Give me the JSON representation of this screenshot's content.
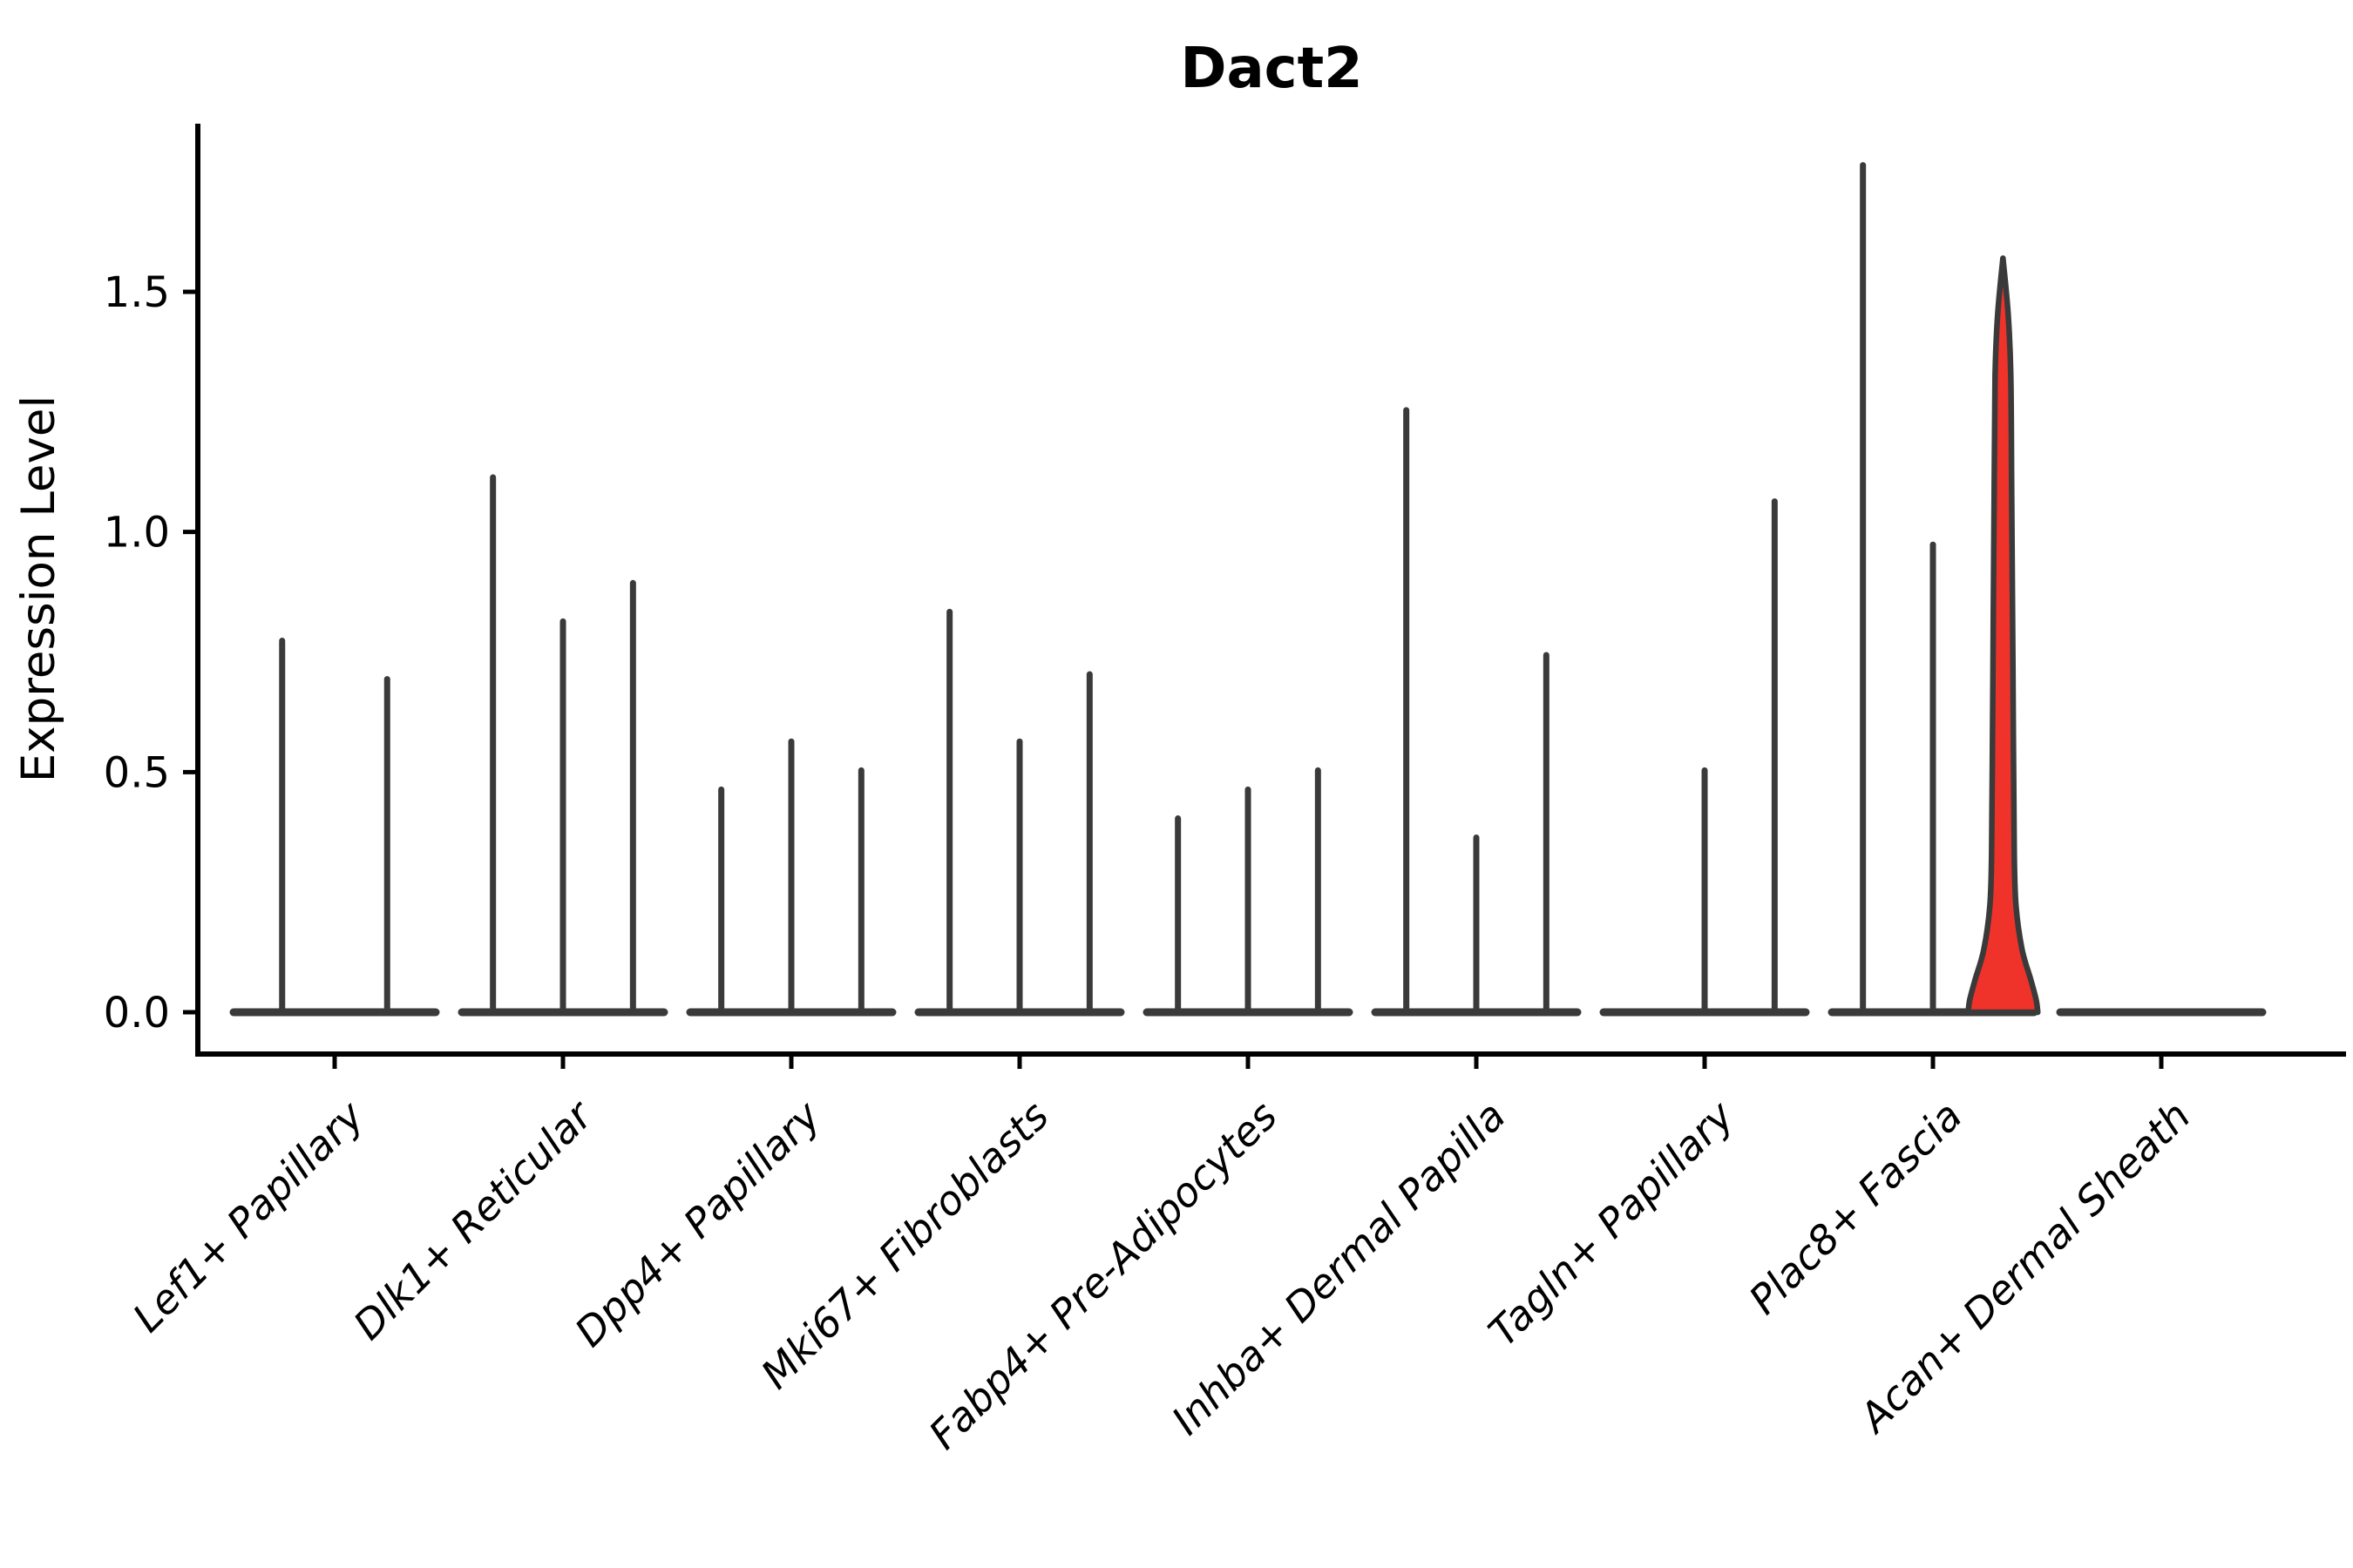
{
  "title": "Dact2",
  "y_axis": {
    "label": "Expression Level",
    "tick_labels": [
      "0.0",
      "0.5",
      "1.0",
      "1.5"
    ]
  },
  "colors": {
    "background": "#ffffff",
    "axis": "#000000",
    "violin_stroke": "#3a3a3a",
    "highlight_fill": "#ef332b"
  },
  "chart_data": {
    "type": "violin",
    "title": "Dact2",
    "xlabel": "",
    "ylabel": "Expression Level",
    "yticks": [
      0.0,
      0.5,
      1.0,
      1.5
    ],
    "ylim": [
      -0.09,
      1.85
    ],
    "grid": false,
    "legend": "none",
    "categories": [
      "Lef1+ Papillary",
      "Dlk1+ Reticular",
      "Dpp4+ Papillary",
      "Mki67+ Fibroblasts",
      "Fabp4+ Pre-Adipocytes",
      "Inhba+ Dermal Papilla",
      "Tagln+ Papillary",
      "Plac8+ Fascia",
      "Acan+ Dermal Sheath"
    ],
    "groups": [
      {
        "category": "Lef1+ Papillary",
        "violins": [
          {
            "max": 0.78
          },
          {
            "max": 0.7
          }
        ]
      },
      {
        "category": "Dlk1+ Reticular",
        "violins": [
          {
            "max": 1.12
          },
          {
            "max": 0.82
          },
          {
            "max": 0.9
          }
        ]
      },
      {
        "category": "Dpp4+ Papillary",
        "violins": [
          {
            "max": 0.47
          },
          {
            "max": 0.57
          },
          {
            "max": 0.51
          }
        ]
      },
      {
        "category": "Mki67+ Fibroblasts",
        "violins": [
          {
            "max": 0.84
          },
          {
            "max": 0.57
          },
          {
            "max": 0.71
          }
        ]
      },
      {
        "category": "Fabp4+ Pre-Adipocytes",
        "violins": [
          {
            "max": 0.41
          },
          {
            "max": 0.47
          },
          {
            "max": 0.51
          }
        ]
      },
      {
        "category": "Inhba+ Dermal Papilla",
        "violins": [
          {
            "max": 1.26
          },
          {
            "max": 0.37
          },
          {
            "max": 0.75
          }
        ]
      },
      {
        "category": "Tagln+ Papillary",
        "violins": [
          {
            "max": 0.0
          },
          {
            "max": 0.51
          },
          {
            "max": 1.07
          }
        ]
      },
      {
        "category": "Plac8+ Fascia",
        "violins": [
          {
            "max": 1.77
          },
          {
            "max": 0.98
          },
          {
            "max": 1.57,
            "highlighted": true
          }
        ]
      },
      {
        "category": "Acan+ Dermal Sheath",
        "violins": [
          {
            "max": 0.0
          },
          {
            "max": 0.0
          },
          {
            "max": 0.0
          }
        ]
      }
    ]
  }
}
